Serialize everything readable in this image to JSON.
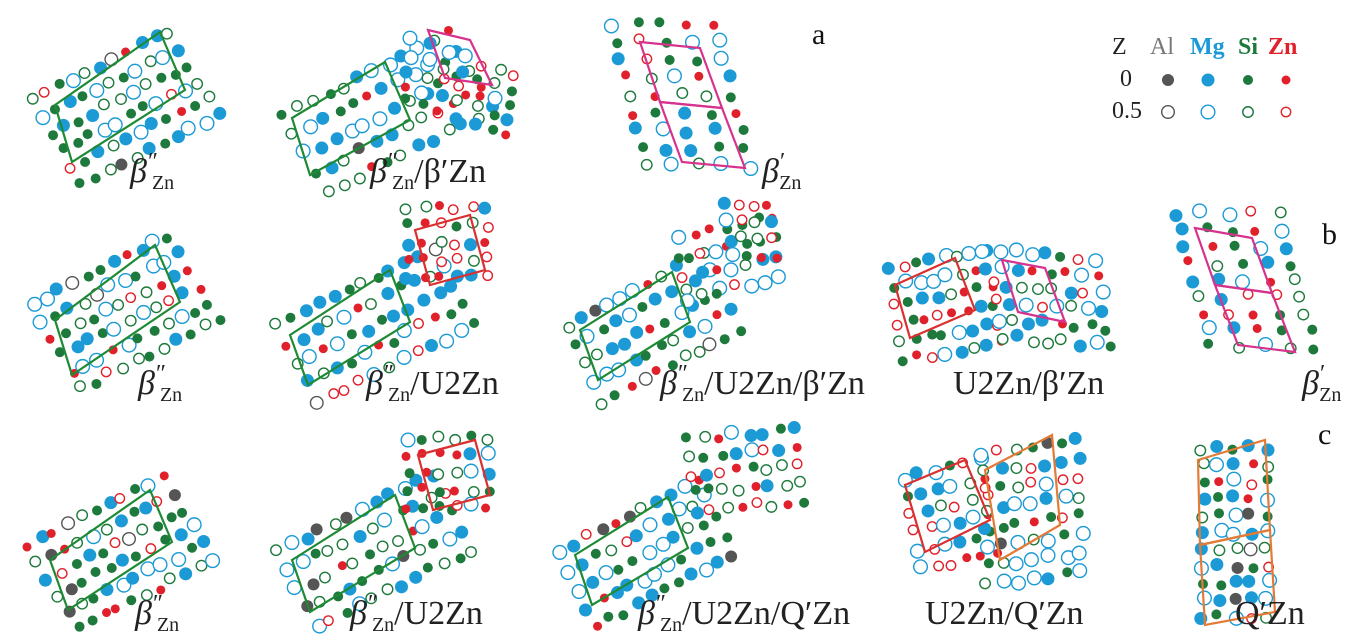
{
  "panel_letters": [
    "a",
    "b",
    "c"
  ],
  "legend": {
    "z_header": "Z",
    "elements": [
      {
        "symbol": "Al",
        "color": "#777777"
      },
      {
        "symbol": "Mg",
        "color": "#1b9ad6"
      },
      {
        "symbol": "Si",
        "color": "#1e7a3c"
      },
      {
        "symbol": "Zn",
        "color": "#e0202a"
      }
    ],
    "z_values": [
      "0",
      "0.5"
    ]
  },
  "colors": {
    "al": "#555555",
    "mg": "#1b9ad6",
    "si": "#1e7a3c",
    "zn": "#e0202a",
    "cell_beta_dd": "#1e8a34",
    "cell_beta_p": "#d6338e",
    "cell_u2": "#d93030",
    "cell_q": "#e37b37"
  },
  "rows": [
    {
      "letter": "a",
      "structures": [
        {
          "greek": "β",
          "primes": "″",
          "sub": "Zn",
          "rest": ""
        },
        {
          "greek": "β",
          "primes": "″",
          "sub": "Zn",
          "rest": "/β′Zn"
        },
        {
          "greek": "β",
          "primes": "′",
          "sub": "Zn",
          "rest": ""
        }
      ]
    },
    {
      "letter": "b",
      "structures": [
        {
          "greek": "β",
          "primes": "″",
          "sub": "Zn",
          "rest": ""
        },
        {
          "greek": "β",
          "primes": "″",
          "sub": "Zn",
          "rest": "/U2Zn"
        },
        {
          "greek": "β",
          "primes": "″",
          "sub": "Zn",
          "rest": "/U2Zn/β′Zn"
        },
        {
          "greek": "",
          "primes": "",
          "sub": "",
          "rest": "U2Zn/β′Zn"
        },
        {
          "greek": "β",
          "primes": "′",
          "sub": "Zn",
          "rest": ""
        }
      ]
    },
    {
      "letter": "c",
      "structures": [
        {
          "greek": "β",
          "primes": "″",
          "sub": "Zn",
          "rest": ""
        },
        {
          "greek": "β",
          "primes": "″",
          "sub": "Zn",
          "rest": "/U2Zn"
        },
        {
          "greek": "β",
          "primes": "″",
          "sub": "Zn",
          "rest": "/U2Zn/Q′Zn"
        },
        {
          "greek": "",
          "primes": "",
          "sub": "",
          "rest": "U2Zn/Q′Zn"
        },
        {
          "greek": "",
          "primes": "",
          "sub": "",
          "rest": "Q′Zn"
        }
      ]
    }
  ]
}
